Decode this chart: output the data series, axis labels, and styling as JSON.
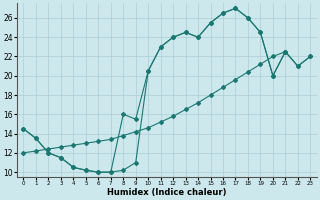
{
  "xlabel": "Humidex (Indice chaleur)",
  "background_color": "#cce8ec",
  "grid_color": "#aacdd4",
  "line_color": "#1a7870",
  "xlim": [
    -0.5,
    23.5
  ],
  "ylim": [
    9.5,
    27.5
  ],
  "xticks": [
    0,
    1,
    2,
    3,
    4,
    5,
    6,
    7,
    8,
    9,
    10,
    11,
    12,
    13,
    14,
    15,
    16,
    17,
    18,
    19,
    20,
    21,
    22,
    23
  ],
  "yticks": [
    10,
    12,
    14,
    16,
    18,
    20,
    22,
    24,
    26
  ],
  "curve1_x": [
    0,
    1,
    2,
    3,
    4,
    5,
    6,
    7,
    8,
    9,
    10,
    11,
    12,
    13,
    14,
    15,
    16,
    17,
    18,
    19,
    20,
    21
  ],
  "curve1_y": [
    14.5,
    13.5,
    12.0,
    11.5,
    10.5,
    10.2,
    10.0,
    10.0,
    10.2,
    11.0,
    20.5,
    23.0,
    24.0,
    24.5,
    24.0,
    25.5,
    26.5,
    27.0,
    26.0,
    24.5,
    20.0,
    22.5
  ],
  "curve2_x": [
    0,
    1,
    2,
    3,
    4,
    5,
    6,
    7,
    8,
    9,
    10,
    11,
    12,
    13,
    14,
    15,
    16,
    17,
    18,
    19,
    20,
    21,
    22,
    23
  ],
  "curve2_y": [
    12.0,
    12.2,
    12.4,
    12.6,
    12.8,
    13.0,
    13.2,
    13.4,
    13.8,
    14.2,
    14.6,
    15.2,
    15.8,
    16.5,
    17.2,
    18.0,
    18.8,
    19.6,
    20.4,
    21.2,
    22.0,
    22.5,
    21.0,
    22.0
  ],
  "curve3_x": [
    0,
    1,
    2,
    3,
    4,
    5,
    6,
    7,
    8,
    9,
    10,
    11,
    12,
    13,
    14,
    15,
    16,
    17,
    18,
    19,
    20,
    21,
    22,
    23
  ],
  "curve3_y": [
    14.5,
    13.5,
    12.0,
    11.5,
    10.5,
    10.2,
    10.0,
    10.0,
    16.0,
    15.5,
    20.5,
    23.0,
    24.0,
    24.5,
    24.0,
    25.5,
    26.5,
    27.0,
    26.0,
    24.5,
    20.0,
    22.5,
    21.0,
    22.0
  ]
}
